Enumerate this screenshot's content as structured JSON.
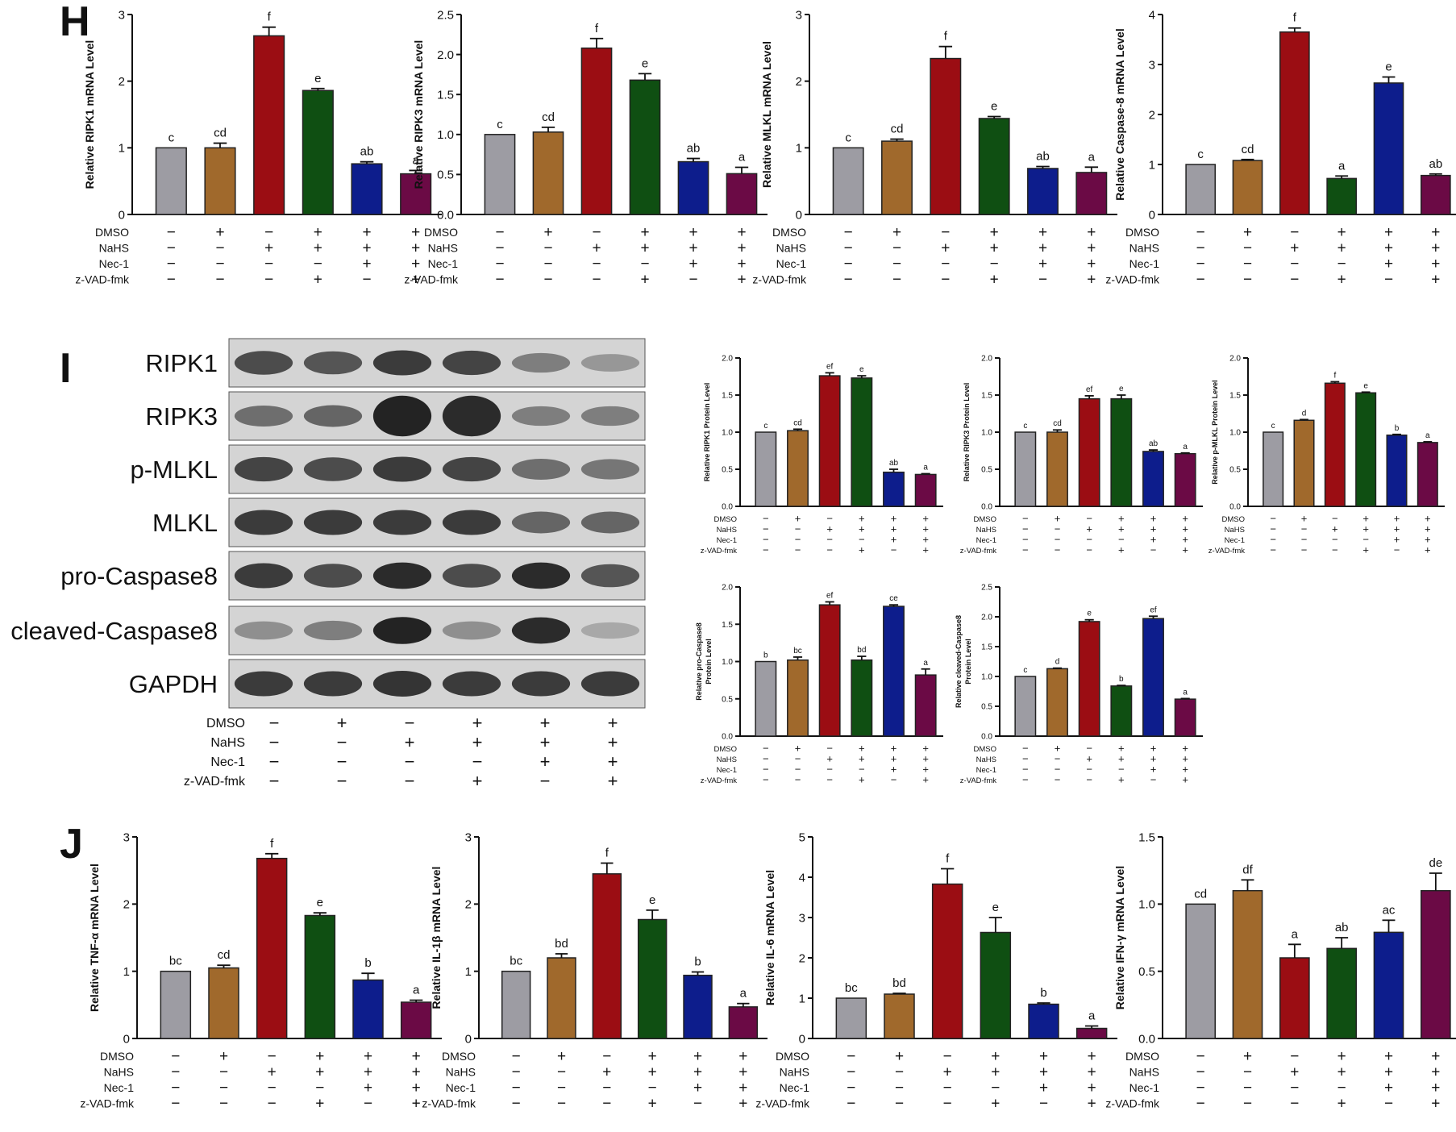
{
  "figure": {
    "panels": [
      "H",
      "I",
      "J"
    ],
    "conditions": [
      "DMSO",
      "NaHS",
      "Nec-1",
      "z-VAD-fmk"
    ],
    "condition_signs": [
      [
        "−",
        "+",
        "−",
        "+",
        "+",
        "+"
      ],
      [
        "−",
        "−",
        "+",
        "+",
        "+",
        "+"
      ],
      [
        "−",
        "−",
        "−",
        "−",
        "+",
        "+"
      ],
      [
        "−",
        "−",
        "−",
        "+",
        "−",
        "+"
      ]
    ],
    "bar_colors": [
      "#9d9ca3",
      "#a0692c",
      "#9b0d13",
      "#0f4f12",
      "#0d1d8c",
      "#6b0a45"
    ],
    "blot": {
      "labels": [
        "RIPK1",
        "RIPK3",
        "p-MLKL",
        "MLKL",
        "pro-Caspase8",
        "cleaved-Caspase8",
        "GAPDH"
      ]
    }
  },
  "chart_data": [
    {
      "type": "bar",
      "panel": "H",
      "ylabel": "Relative RIPK1 mRNA Level",
      "ylim": [
        0,
        3
      ],
      "yticks": [
        "0",
        "1",
        "2",
        "3"
      ],
      "values": [
        1.0,
        1.0,
        2.68,
        1.86,
        0.76,
        0.61
      ],
      "errors": [
        0,
        0.07,
        0.13,
        0.03,
        0.03,
        0.05
      ],
      "letters": [
        "c",
        "cd",
        "f",
        "e",
        "ab",
        "a"
      ]
    },
    {
      "type": "bar",
      "panel": "H",
      "ylabel": "Relative RIPK3 mRNA Level",
      "ylim": [
        0,
        2.5
      ],
      "yticks": [
        "0.0",
        "0.5",
        "1.0",
        "1.5",
        "2.0",
        "2.5"
      ],
      "values": [
        1.0,
        1.03,
        2.08,
        1.68,
        0.66,
        0.51
      ],
      "errors": [
        0,
        0.06,
        0.12,
        0.08,
        0.04,
        0.08
      ],
      "letters": [
        "c",
        "cd",
        "f",
        "e",
        "ab",
        "a"
      ]
    },
    {
      "type": "bar",
      "panel": "H",
      "ylabel": "Relative MLKL mRNA Level",
      "ylim": [
        0,
        3
      ],
      "yticks": [
        "0",
        "1",
        "2",
        "3"
      ],
      "values": [
        1.0,
        1.1,
        2.34,
        1.44,
        0.69,
        0.63
      ],
      "errors": [
        0,
        0.03,
        0.18,
        0.03,
        0.03,
        0.08
      ],
      "letters": [
        "c",
        "cd",
        "f",
        "e",
        "ab",
        "a"
      ]
    },
    {
      "type": "bar",
      "panel": "H",
      "ylabel": "Relative Caspase-8 mRNA Level",
      "ylim": [
        0,
        4
      ],
      "yticks": [
        "0",
        "1",
        "2",
        "3",
        "4"
      ],
      "values": [
        1.0,
        1.08,
        3.65,
        0.72,
        2.63,
        0.78
      ],
      "errors": [
        0,
        0.02,
        0.08,
        0.05,
        0.12,
        0.03
      ],
      "letters": [
        "c",
        "cd",
        "f",
        "a",
        "e",
        "ab"
      ]
    },
    {
      "type": "bar",
      "panel": "I",
      "ylabel": "Relative RIPK1 Protein Level",
      "ylim": [
        0,
        2
      ],
      "yticks": [
        "0.0",
        "0.5",
        "1.0",
        "1.5",
        "2.0"
      ],
      "values": [
        1.0,
        1.02,
        1.76,
        1.73,
        0.46,
        0.43
      ],
      "errors": [
        0,
        0.02,
        0.04,
        0.03,
        0.04,
        0.01
      ],
      "letters": [
        "c",
        "cd",
        "ef",
        "e",
        "ab",
        "a"
      ]
    },
    {
      "type": "bar",
      "panel": "I",
      "ylabel": "Relative RIPK3 Protein Level",
      "ylim": [
        0,
        2
      ],
      "yticks": [
        "0.0",
        "0.5",
        "1.0",
        "1.5",
        "2.0"
      ],
      "values": [
        1.0,
        1.0,
        1.45,
        1.45,
        0.74,
        0.71
      ],
      "errors": [
        0,
        0.03,
        0.04,
        0.05,
        0.02,
        0.01
      ],
      "letters": [
        "c",
        "cd",
        "ef",
        "e",
        "ab",
        "a"
      ]
    },
    {
      "type": "bar",
      "panel": "I",
      "ylabel": "Relative p-MLKL Protein Level",
      "ylim": [
        0,
        2
      ],
      "yticks": [
        "0.0",
        "0.5",
        "1.0",
        "1.5",
        "2.0"
      ],
      "values": [
        1.0,
        1.16,
        1.66,
        1.53,
        0.96,
        0.86
      ],
      "errors": [
        0,
        0.01,
        0.02,
        0.01,
        0.01,
        0.01
      ],
      "letters": [
        "c",
        "d",
        "f",
        "e",
        "b",
        "a"
      ]
    },
    {
      "type": "bar",
      "panel": "I",
      "ylabel": "Relative pro-Caspase8 Protein Level",
      "ylim": [
        0,
        2
      ],
      "yticks": [
        "0.0",
        "0.5",
        "1.0",
        "1.5",
        "2.0"
      ],
      "values": [
        1.0,
        1.02,
        1.76,
        1.02,
        1.74,
        0.82
      ],
      "errors": [
        0,
        0.04,
        0.04,
        0.05,
        0.02,
        0.08
      ],
      "letters": [
        "b",
        "bc",
        "ef",
        "bd",
        "ce",
        "a"
      ]
    },
    {
      "type": "bar",
      "panel": "I",
      "ylabel": "Relative cleaved-Caspase8 Protein Level",
      "ylim": [
        0,
        2.5
      ],
      "yticks": [
        "0.0",
        "0.5",
        "1.0",
        "1.5",
        "2.0",
        "2.5"
      ],
      "values": [
        1.0,
        1.13,
        1.92,
        0.84,
        1.97,
        0.62
      ],
      "errors": [
        0,
        0.01,
        0.03,
        0.01,
        0.04,
        0.01
      ],
      "letters": [
        "c",
        "d",
        "e",
        "b",
        "ef",
        "a"
      ]
    },
    {
      "type": "bar",
      "panel": "J",
      "ylabel": "Relative TNF-α mRNA Level",
      "ylim": [
        0,
        3
      ],
      "yticks": [
        "0",
        "1",
        "2",
        "3"
      ],
      "values": [
        1.0,
        1.05,
        2.68,
        1.83,
        0.87,
        0.54
      ],
      "errors": [
        0,
        0.04,
        0.07,
        0.04,
        0.1,
        0.03
      ],
      "letters": [
        "bc",
        "cd",
        "f",
        "e",
        "b",
        "a"
      ]
    },
    {
      "type": "bar",
      "panel": "J",
      "ylabel": "Relative IL-1β mRNA Level",
      "ylim": [
        0,
        3
      ],
      "yticks": [
        "0",
        "1",
        "2",
        "3"
      ],
      "values": [
        1.0,
        1.2,
        2.45,
        1.77,
        0.94,
        0.47
      ],
      "errors": [
        0,
        0.06,
        0.16,
        0.14,
        0.05,
        0.05
      ],
      "letters": [
        "bc",
        "bd",
        "f",
        "e",
        "b",
        "a"
      ]
    },
    {
      "type": "bar",
      "panel": "J",
      "ylabel": "Relative IL-6 mRNA Level",
      "ylim": [
        0,
        5
      ],
      "yticks": [
        "0",
        "1",
        "2",
        "3",
        "4",
        "5"
      ],
      "values": [
        1.0,
        1.1,
        3.83,
        2.63,
        0.85,
        0.25
      ],
      "errors": [
        0,
        0.02,
        0.38,
        0.37,
        0.03,
        0.06
      ],
      "letters": [
        "bc",
        "bd",
        "f",
        "e",
        "b",
        "a"
      ]
    },
    {
      "type": "bar",
      "panel": "J",
      "ylabel": "Relative IFN-γ mRNA Level",
      "ylim": [
        0,
        1.5
      ],
      "yticks": [
        "0.0",
        "0.5",
        "1.0",
        "1.5"
      ],
      "values": [
        1.0,
        1.1,
        0.6,
        0.67,
        0.79,
        1.1
      ],
      "errors": [
        0,
        0.08,
        0.1,
        0.08,
        0.09,
        0.13
      ],
      "letters": [
        "cd",
        "df",
        "a",
        "ab",
        "ac",
        "de"
      ]
    }
  ]
}
